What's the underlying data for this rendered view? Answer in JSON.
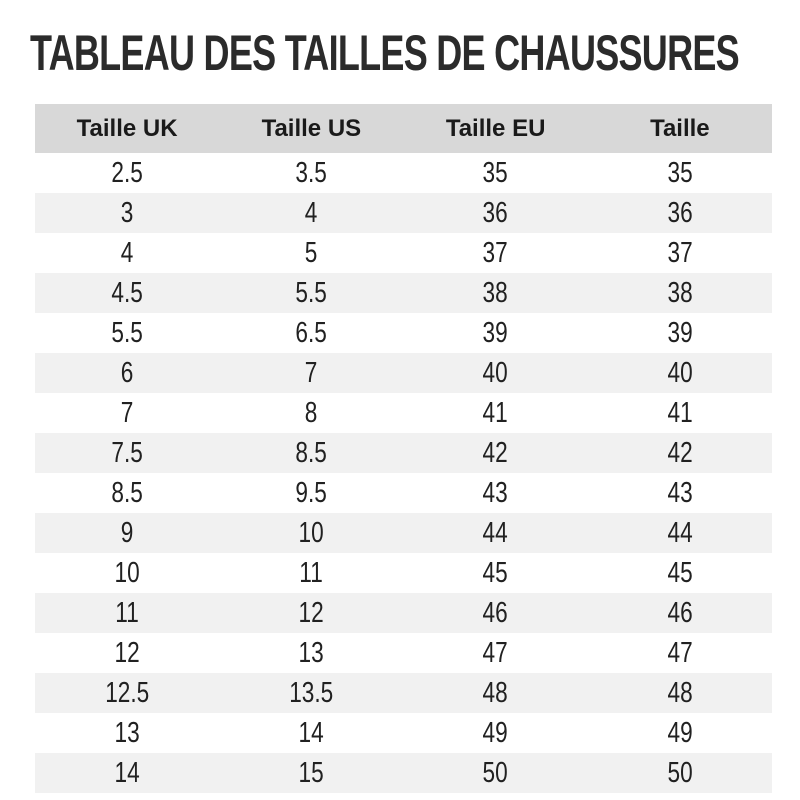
{
  "page": {
    "title": "TABLEAU DES TAILLES DE CHAUSSURES"
  },
  "chart_data": {
    "type": "table",
    "title": "TABLEAU DES TAILLES DE CHAUSSURES",
    "columns": [
      "Taille UK",
      "Taille US",
      "Taille EU",
      "Taille"
    ],
    "rows": [
      [
        "2.5",
        "3.5",
        "35",
        "35"
      ],
      [
        "3",
        "4",
        "36",
        "36"
      ],
      [
        "4",
        "5",
        "37",
        "37"
      ],
      [
        "4.5",
        "5.5",
        "38",
        "38"
      ],
      [
        "5.5",
        "6.5",
        "39",
        "39"
      ],
      [
        "6",
        "7",
        "40",
        "40"
      ],
      [
        "7",
        "8",
        "41",
        "41"
      ],
      [
        "7.5",
        "8.5",
        "42",
        "42"
      ],
      [
        "8.5",
        "9.5",
        "43",
        "43"
      ],
      [
        "9",
        "10",
        "44",
        "44"
      ],
      [
        "10",
        "11",
        "45",
        "45"
      ],
      [
        "11",
        "12",
        "46",
        "46"
      ],
      [
        "12",
        "13",
        "47",
        "47"
      ],
      [
        "12.5",
        "13.5",
        "48",
        "48"
      ],
      [
        "13",
        "14",
        "49",
        "49"
      ],
      [
        "14",
        "15",
        "50",
        "50"
      ]
    ],
    "layout": {
      "zebra_striping": true,
      "first_body_row_background": "white",
      "alignment": "center"
    },
    "colors": {
      "title_text": "#2b2b2b",
      "header_bg": "#d8d8d8",
      "header_text": "#1a1a1a",
      "alt_row_bg": "#f1f1f1",
      "cell_text": "#212121",
      "page_bg": "#ffffff"
    }
  }
}
